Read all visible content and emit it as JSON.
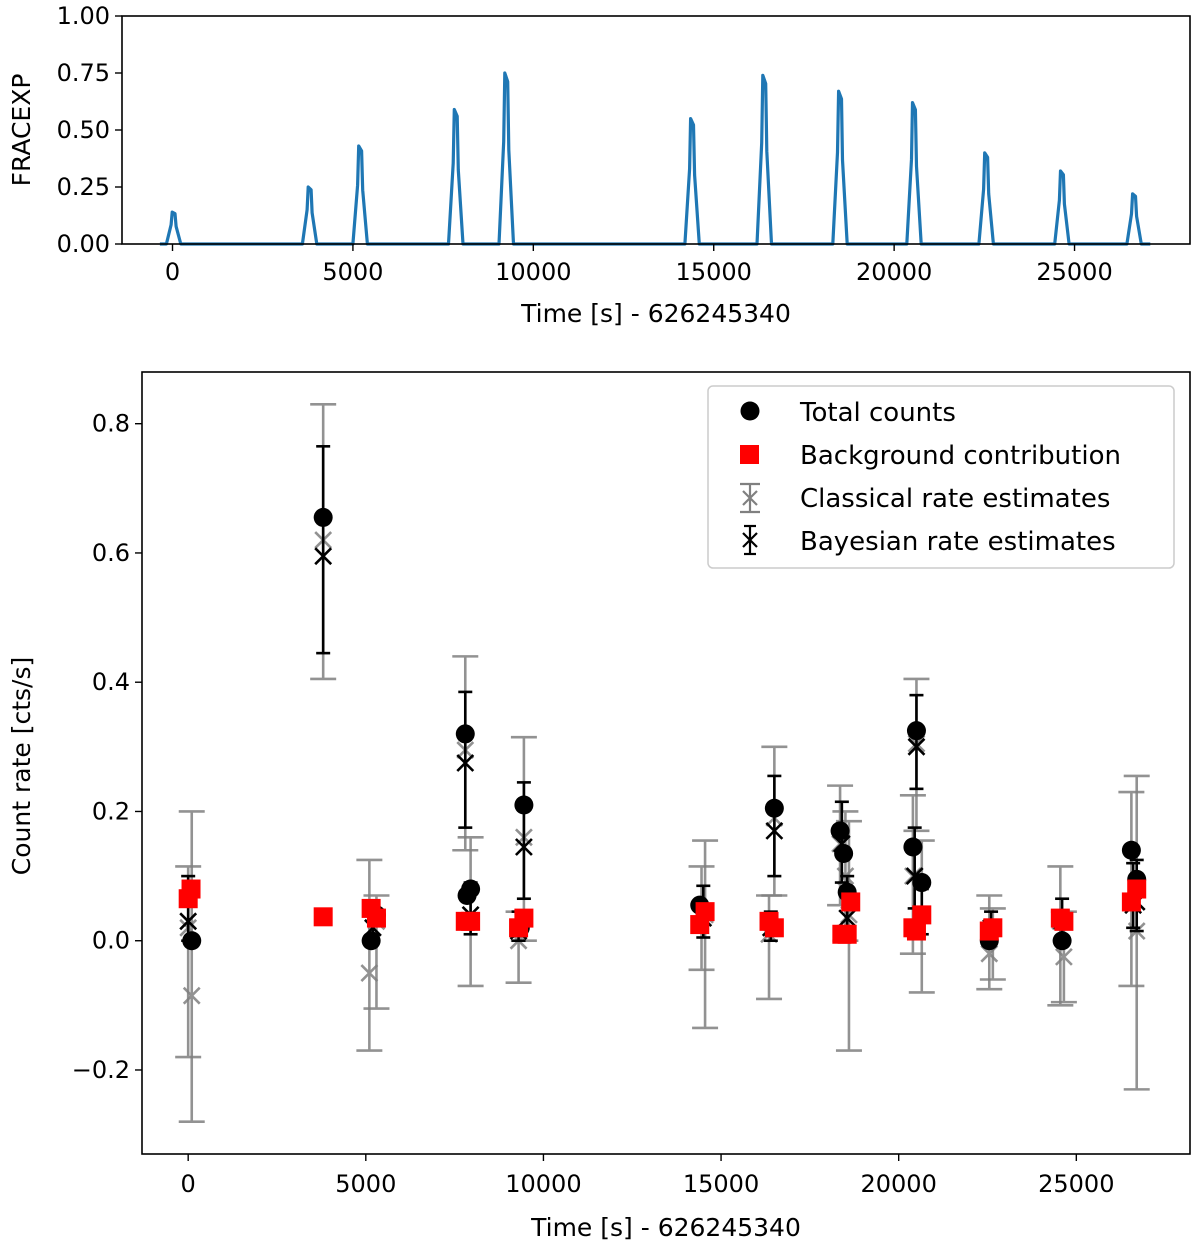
{
  "chart_data": [
    {
      "type": "line",
      "title": "",
      "xlabel": "Time [s] - 626245340",
      "ylabel": "FRACEXP",
      "xlim": [
        -1400,
        28200
      ],
      "ylim": [
        0,
        1
      ],
      "x_ticks": [
        0,
        5000,
        10000,
        15000,
        20000,
        25000
      ],
      "y_ticks": [
        0.0,
        0.25,
        0.5,
        0.75,
        1.0
      ],
      "y_tick_labels": [
        "0.00",
        "0.25",
        "0.50",
        "0.75",
        "1.00"
      ],
      "color": "#1f77b4",
      "grid": false,
      "peaks": [
        {
          "center": 30,
          "height": 0.14
        },
        {
          "center": 3800,
          "height": 0.25
        },
        {
          "center": 5200,
          "height": 0.43
        },
        {
          "center": 7850,
          "height": 0.59
        },
        {
          "center": 9250,
          "height": 0.75
        },
        {
          "center": 14400,
          "height": 0.55
        },
        {
          "center": 16400,
          "height": 0.74
        },
        {
          "center": 18500,
          "height": 0.67
        },
        {
          "center": 20550,
          "height": 0.62
        },
        {
          "center": 22550,
          "height": 0.4
        },
        {
          "center": 24650,
          "height": 0.32
        },
        {
          "center": 26650,
          "height": 0.22
        }
      ]
    },
    {
      "type": "scatter",
      "title": "",
      "xlabel": "Time [s] - 626245340",
      "ylabel": "Count rate [cts/s]",
      "xlim": [
        -1300,
        28200
      ],
      "ylim": [
        -0.33,
        0.88
      ],
      "x_ticks": [
        0,
        5000,
        10000,
        15000,
        20000,
        25000
      ],
      "y_ticks": [
        -0.2,
        0.0,
        0.2,
        0.4,
        0.6,
        0.8
      ],
      "y_tick_labels": [
        "−0.2",
        "0.0",
        "0.2",
        "0.4",
        "0.6",
        "0.8"
      ],
      "grid": false,
      "legend_position": "top-right",
      "legend": [
        {
          "label": "Total counts",
          "marker": "circle",
          "color": "#000000"
        },
        {
          "label": "Background contribution",
          "marker": "square",
          "color": "#ff0000"
        },
        {
          "label": "Classical rate estimates",
          "marker": "x-errorbar",
          "color": "#808080"
        },
        {
          "label": "Bayesian rate estimates",
          "marker": "x-errorbar",
          "color": "#000000"
        }
      ],
      "series": [
        {
          "name": "Classical rate estimates",
          "color": "#808080",
          "points": [
            {
              "x": 100,
              "y": -0.085,
              "lo": -0.28,
              "hi": 0.2
            },
            {
              "x": 0,
              "y": 0.02,
              "lo": -0.18,
              "hi": 0.115
            },
            {
              "x": 5100,
              "y": -0.05,
              "lo": -0.17,
              "hi": 0.125
            },
            {
              "x": 5300,
              "y": 0.03,
              "lo": -0.105,
              "hi": 0.07
            },
            {
              "x": 3800,
              "y": 0.62,
              "lo": 0.405,
              "hi": 0.83
            },
            {
              "x": 7800,
              "y": 0.295,
              "lo": 0.14,
              "hi": 0.44
            },
            {
              "x": 7950,
              "y": 0.04,
              "lo": -0.07,
              "hi": 0.16
            },
            {
              "x": 9300,
              "y": 0.0,
              "lo": -0.065,
              "hi": 0.045
            },
            {
              "x": 9450,
              "y": 0.16,
              "lo": 0.0,
              "hi": 0.315
            },
            {
              "x": 14450,
              "y": 0.035,
              "lo": -0.045,
              "hi": 0.115
            },
            {
              "x": 14550,
              "y": 0.04,
              "lo": -0.135,
              "hi": 0.155
            },
            {
              "x": 16350,
              "y": 0.01,
              "lo": -0.09,
              "hi": 0.07
            },
            {
              "x": 16500,
              "y": 0.19,
              "lo": 0.07,
              "hi": 0.3
            },
            {
              "x": 18350,
              "y": 0.15,
              "lo": 0.055,
              "hi": 0.24
            },
            {
              "x": 18500,
              "y": 0.1,
              "lo": 0.0,
              "hi": 0.2
            },
            {
              "x": 18600,
              "y": 0.04,
              "lo": -0.17,
              "hi": 0.185
            },
            {
              "x": 20400,
              "y": 0.1,
              "lo": -0.02,
              "hi": 0.225
            },
            {
              "x": 20500,
              "y": 0.305,
              "lo": 0.17,
              "hi": 0.405
            },
            {
              "x": 20650,
              "y": 0.04,
              "lo": -0.08,
              "hi": 0.155
            },
            {
              "x": 22550,
              "y": -0.02,
              "lo": -0.075,
              "hi": 0.07
            },
            {
              "x": 22650,
              "y": 0.02,
              "lo": -0.06,
              "hi": 0.05
            },
            {
              "x": 24550,
              "y": 0.03,
              "lo": -0.1,
              "hi": 0.115
            },
            {
              "x": 24650,
              "y": -0.025,
              "lo": -0.095,
              "hi": 0.045
            },
            {
              "x": 26550,
              "y": 0.06,
              "lo": -0.07,
              "hi": 0.23
            },
            {
              "x": 26700,
              "y": 0.015,
              "lo": -0.23,
              "hi": 0.255
            }
          ]
        },
        {
          "name": "Bayesian rate estimates",
          "color": "#000000",
          "points": [
            {
              "x": 0,
              "y": 0.03,
              "lo": 0.0,
              "hi": 0.1
            },
            {
              "x": 5200,
              "y": 0.02,
              "lo": 0.0,
              "hi": 0.06
            },
            {
              "x": 3800,
              "y": 0.595,
              "lo": 0.445,
              "hi": 0.765
            },
            {
              "x": 7800,
              "y": 0.275,
              "lo": 0.175,
              "hi": 0.385
            },
            {
              "x": 7950,
              "y": 0.04,
              "lo": 0.01,
              "hi": 0.09
            },
            {
              "x": 9300,
              "y": 0.015,
              "lo": 0.0,
              "hi": 0.045
            },
            {
              "x": 9450,
              "y": 0.145,
              "lo": 0.065,
              "hi": 0.245
            },
            {
              "x": 14500,
              "y": 0.035,
              "lo": 0.005,
              "hi": 0.085
            },
            {
              "x": 16400,
              "y": 0.02,
              "lo": 0.0,
              "hi": 0.045
            },
            {
              "x": 16500,
              "y": 0.17,
              "lo": 0.1,
              "hi": 0.255
            },
            {
              "x": 18400,
              "y": 0.15,
              "lo": 0.09,
              "hi": 0.215
            },
            {
              "x": 18550,
              "y": 0.035,
              "lo": 0.0,
              "hi": 0.1
            },
            {
              "x": 20450,
              "y": 0.1,
              "lo": 0.05,
              "hi": 0.175
            },
            {
              "x": 20500,
              "y": 0.3,
              "lo": 0.235,
              "hi": 0.38
            },
            {
              "x": 20650,
              "y": 0.04,
              "lo": 0.01,
              "hi": 0.08
            },
            {
              "x": 22600,
              "y": 0.02,
              "lo": 0.0,
              "hi": 0.045
            },
            {
              "x": 24600,
              "y": 0.03,
              "lo": 0.0,
              "hi": 0.065
            },
            {
              "x": 26600,
              "y": 0.055,
              "lo": 0.02,
              "hi": 0.12
            },
            {
              "x": 26700,
              "y": 0.06,
              "lo": 0.015,
              "hi": 0.125
            }
          ]
        },
        {
          "name": "Total counts",
          "color": "#000000",
          "points": [
            {
              "x": 100,
              "y": 0.0
            },
            {
              "x": 3800,
              "y": 0.655
            },
            {
              "x": 5150,
              "y": 0.0
            },
            {
              "x": 5300,
              "y": 0.04
            },
            {
              "x": 7800,
              "y": 0.32
            },
            {
              "x": 7850,
              "y": 0.07
            },
            {
              "x": 7950,
              "y": 0.08
            },
            {
              "x": 9350,
              "y": 0.02
            },
            {
              "x": 9450,
              "y": 0.21
            },
            {
              "x": 14400,
              "y": 0.055
            },
            {
              "x": 16500,
              "y": 0.205
            },
            {
              "x": 18350,
              "y": 0.17
            },
            {
              "x": 18450,
              "y": 0.135
            },
            {
              "x": 18550,
              "y": 0.075
            },
            {
              "x": 20400,
              "y": 0.145
            },
            {
              "x": 20500,
              "y": 0.325
            },
            {
              "x": 20650,
              "y": 0.09
            },
            {
              "x": 22550,
              "y": 0.0
            },
            {
              "x": 24600,
              "y": 0.0
            },
            {
              "x": 26550,
              "y": 0.14
            },
            {
              "x": 26700,
              "y": 0.095
            }
          ]
        },
        {
          "name": "Background contribution",
          "color": "#ff0000",
          "points": [
            {
              "x": 0,
              "y": 0.065
            },
            {
              "x": 80,
              "y": 0.08
            },
            {
              "x": 3800,
              "y": 0.037
            },
            {
              "x": 5150,
              "y": 0.05
            },
            {
              "x": 5300,
              "y": 0.035
            },
            {
              "x": 7800,
              "y": 0.03
            },
            {
              "x": 7950,
              "y": 0.03
            },
            {
              "x": 9300,
              "y": 0.02
            },
            {
              "x": 9450,
              "y": 0.035
            },
            {
              "x": 14400,
              "y": 0.025
            },
            {
              "x": 14550,
              "y": 0.045
            },
            {
              "x": 16350,
              "y": 0.03
            },
            {
              "x": 16500,
              "y": 0.02
            },
            {
              "x": 18400,
              "y": 0.01
            },
            {
              "x": 18550,
              "y": 0.01
            },
            {
              "x": 18650,
              "y": 0.06
            },
            {
              "x": 20400,
              "y": 0.02
            },
            {
              "x": 20500,
              "y": 0.015
            },
            {
              "x": 20650,
              "y": 0.04
            },
            {
              "x": 22550,
              "y": 0.015
            },
            {
              "x": 22650,
              "y": 0.02
            },
            {
              "x": 24550,
              "y": 0.035
            },
            {
              "x": 24650,
              "y": 0.03
            },
            {
              "x": 26550,
              "y": 0.06
            },
            {
              "x": 26700,
              "y": 0.08
            }
          ]
        }
      ]
    }
  ]
}
